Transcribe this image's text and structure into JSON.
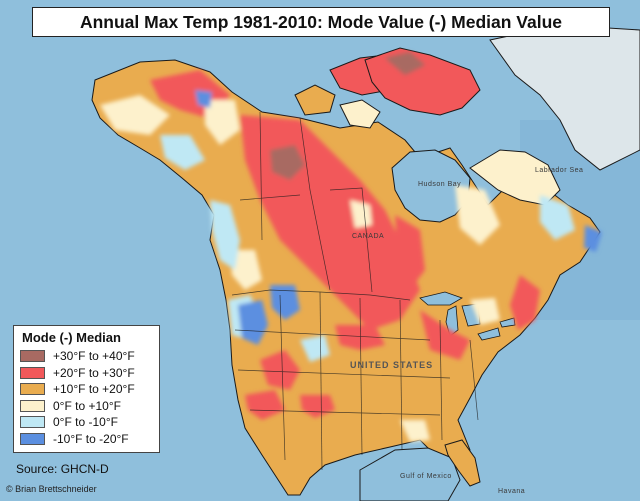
{
  "title": "Annual Max Temp 1981-2010: Mode Value (-) Median Value",
  "legend": {
    "title": "Mode (-) Median",
    "items": [
      {
        "label": "+30°F to +40°F",
        "color": "#a86a62"
      },
      {
        "label": "+20°F to +30°F",
        "color": "#f2585a"
      },
      {
        "label": "+10°F to +20°F",
        "color": "#e9ac4f"
      },
      {
        "label": "0°F to +10°F",
        "color": "#fdf1cc"
      },
      {
        "label": "0°F to -10°F",
        "color": "#bfe8f4"
      },
      {
        "label": "-10°F to -20°F",
        "color": "#5b8fe0"
      }
    ]
  },
  "source": "Source: GHCN-D",
  "credit": "© Brian Brettschneider",
  "map_labels": {
    "canada": "CANADA",
    "united_states": "UNITED STATES",
    "hudson_bay": "Hudson Bay",
    "labrador_sea": "Labrador Sea",
    "gulf_of_mexico": "Gulf of Mexico",
    "havana": "Havana"
  }
}
